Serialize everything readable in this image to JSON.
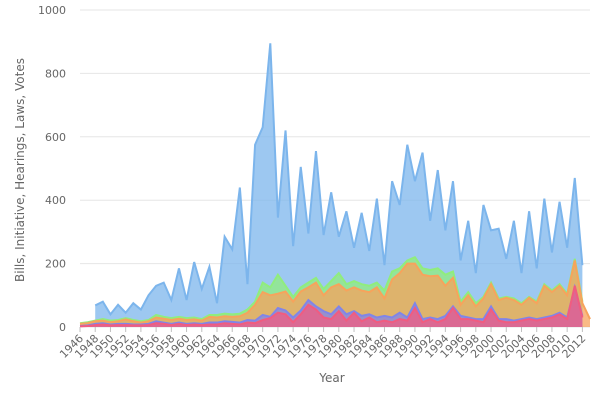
{
  "chart_data": {
    "type": "area",
    "title": "",
    "xlabel": "Year",
    "ylabel": "Bills, Initiative, Hearings, Laws, Votes",
    "ylim": [
      0,
      1000
    ],
    "xlim": [
      1946,
      2013
    ],
    "y_ticks": [
      0,
      200,
      400,
      600,
      800,
      1000
    ],
    "x_ticks": [
      1946,
      1948,
      1950,
      1952,
      1954,
      1956,
      1958,
      1960,
      1962,
      1964,
      1966,
      1968,
      1970,
      1972,
      1974,
      1976,
      1978,
      1980,
      1982,
      1984,
      1986,
      1988,
      1990,
      1992,
      1994,
      1996,
      1998,
      2000,
      2002,
      2004,
      2006,
      2008,
      2010,
      2012
    ],
    "grid": "horizontal",
    "legend": "none",
    "x": [
      1946,
      1947,
      1948,
      1949,
      1950,
      1951,
      1952,
      1953,
      1954,
      1955,
      1956,
      1957,
      1958,
      1959,
      1960,
      1961,
      1962,
      1963,
      1964,
      1965,
      1966,
      1967,
      1968,
      1969,
      1970,
      1971,
      1972,
      1973,
      1974,
      1975,
      1976,
      1977,
      1978,
      1979,
      1980,
      1981,
      1982,
      1983,
      1984,
      1985,
      1986,
      1987,
      1988,
      1989,
      1990,
      1991,
      1992,
      1993,
      1994,
      1995,
      1996,
      1997,
      1998,
      1999,
      2000,
      2001,
      2002,
      2003,
      2004,
      2005,
      2006,
      2007,
      2008,
      2009,
      2010,
      2011,
      2012,
      2013
    ],
    "series": [
      {
        "color": "#7cb5ec",
        "values": [
          null,
          null,
          68,
          80,
          40,
          70,
          45,
          75,
          55,
          100,
          130,
          140,
          85,
          185,
          85,
          205,
          120,
          190,
          75,
          285,
          245,
          440,
          135,
          575,
          630,
          895,
          345,
          620,
          255,
          505,
          295,
          555,
          290,
          425,
          285,
          365,
          250,
          360,
          240,
          405,
          195,
          460,
          385,
          575,
          460,
          550,
          335,
          495,
          305,
          460,
          210,
          335,
          170,
          385,
          305,
          310,
          215,
          335,
          170,
          365,
          185,
          405,
          235,
          395,
          250,
          470,
          195,
          null
        ]
      },
      {
        "color": "#90ed7d",
        "values": [
          12,
          15,
          20,
          25,
          20,
          22,
          28,
          22,
          18,
          22,
          38,
          32,
          28,
          32,
          28,
          30,
          25,
          38,
          38,
          42,
          40,
          42,
          55,
          80,
          140,
          125,
          165,
          130,
          95,
          125,
          140,
          155,
          120,
          145,
          170,
          135,
          145,
          135,
          130,
          140,
          115,
          175,
          185,
          210,
          220,
          185,
          180,
          185,
          165,
          175,
          80,
          110,
          75,
          95,
          140,
          90,
          95,
          90,
          75,
          95,
          80,
          135,
          115,
          135,
          105,
          215,
          80,
          null
        ]
      },
      {
        "color": "#f7a35c",
        "values": [
          10,
          12,
          18,
          20,
          15,
          18,
          24,
          18,
          14,
          18,
          30,
          26,
          22,
          26,
          22,
          24,
          20,
          32,
          30,
          34,
          32,
          34,
          45,
          70,
          110,
          100,
          105,
          112,
          80,
          112,
          125,
          140,
          100,
          125,
          135,
          115,
          125,
          115,
          110,
          125,
          90,
          150,
          170,
          200,
          200,
          165,
          160,
          162,
          130,
          155,
          70,
          100,
          65,
          90,
          135,
          85,
          92,
          85,
          70,
          92,
          75,
          130,
          110,
          130,
          100,
          210,
          75,
          25
        ]
      },
      {
        "color": "#8085e9",
        "values": [
          3,
          5,
          10,
          12,
          8,
          10,
          10,
          8,
          8,
          10,
          18,
          14,
          10,
          14,
          10,
          12,
          10,
          14,
          14,
          18,
          16,
          14,
          22,
          20,
          38,
          32,
          60,
          52,
          30,
          52,
          85,
          65,
          50,
          40,
          65,
          40,
          50,
          35,
          40,
          30,
          35,
          30,
          45,
          30,
          75,
          25,
          30,
          25,
          35,
          65,
          35,
          30,
          25,
          25,
          65,
          25,
          25,
          20,
          25,
          30,
          25,
          30,
          35,
          45,
          30,
          125,
          35,
          null
        ]
      },
      {
        "color": "#f15c80",
        "values": [
          2,
          3,
          6,
          8,
          5,
          6,
          6,
          5,
          5,
          6,
          12,
          10,
          6,
          10,
          6,
          8,
          6,
          8,
          8,
          12,
          10,
          8,
          14,
          12,
          22,
          28,
          45,
          40,
          15,
          40,
          70,
          55,
          30,
          25,
          50,
          20,
          45,
          18,
          30,
          15,
          20,
          15,
          25,
          20,
          60,
          15,
          25,
          15,
          25,
          60,
          25,
          25,
          20,
          15,
          55,
          20,
          15,
          15,
          20,
          25,
          20,
          25,
          30,
          40,
          25,
          130,
          30,
          null
        ]
      }
    ]
  }
}
